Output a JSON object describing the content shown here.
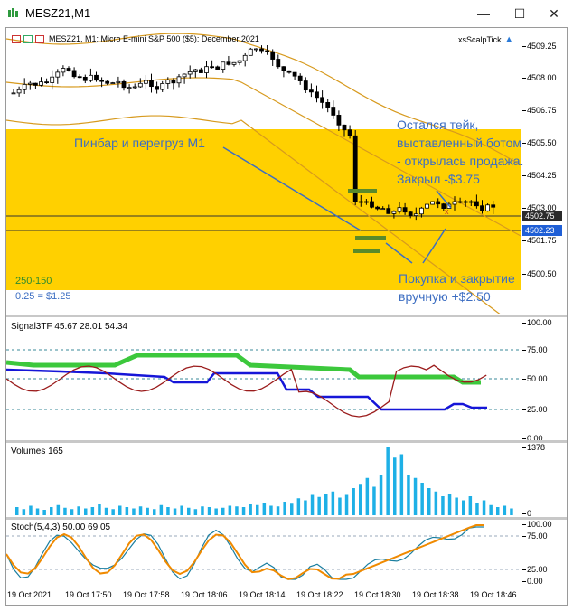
{
  "window": {
    "title": "MESZ21,M1"
  },
  "main_chart": {
    "header": "MESZ21, M1:  Micro E-mini S&P 500 ($5): December 2021",
    "expert_label": "xsScalpTick",
    "price_ticks": [
      "4509.25",
      "4508.00",
      "4506.75",
      "4505.50",
      "4504.25",
      "4503.00",
      "4501.75",
      "4500.50"
    ],
    "price_boxes": [
      {
        "label": "4502.75",
        "color": "#2b2b2b"
      },
      {
        "label": "4502.23",
        "color": "#1f5fd6"
      }
    ],
    "range_label": "250-150",
    "tick_value_label": "0.25 = $1.25",
    "annotations": {
      "pinbar": "Пинбар и перегруз М1",
      "tp_left": [
        "Остался тейк,",
        "выставленный ботом",
        "- открылась продажа.",
        "Закрыл -$3.75"
      ],
      "buy_close": [
        "Покупка и закрытие",
        "вручную +$2.50"
      ]
    }
  },
  "signal_panel": {
    "label": "Signal3TF 45.67 28.01 54.34",
    "ticks": [
      "100.00",
      "75.00",
      "50.00",
      "25.00",
      "0.00"
    ]
  },
  "volume_panel": {
    "label": "Volumes 165",
    "ticks": [
      "1378",
      "0"
    ]
  },
  "stoch_panel": {
    "label": "Stoch(5,4,3) 50.00 69.05",
    "ticks": [
      "100.00",
      "75.00",
      "25.00",
      "0.00"
    ]
  },
  "time_axis": [
    "19 Oct 2021",
    "19 Oct 17:50",
    "19 Oct 17:58",
    "19 Oct 18:06",
    "19 Oct 18:14",
    "19 Oct 18:22",
    "19 Oct 18:30",
    "19 Oct 18:38",
    "19 Oct 18:46"
  ],
  "colors": {
    "highlight": "#ffd000",
    "annotation": "#3d6ec2",
    "candle_up": "#ffffff",
    "candle_down": "#000000",
    "signal_green": "#3cc83c",
    "signal_blue": "#1616d8",
    "signal_red": "#9b1c1c",
    "volume": "#1eb0e6",
    "stoch_orange": "#f08a00",
    "stoch_teal": "#1b7fa0"
  }
}
